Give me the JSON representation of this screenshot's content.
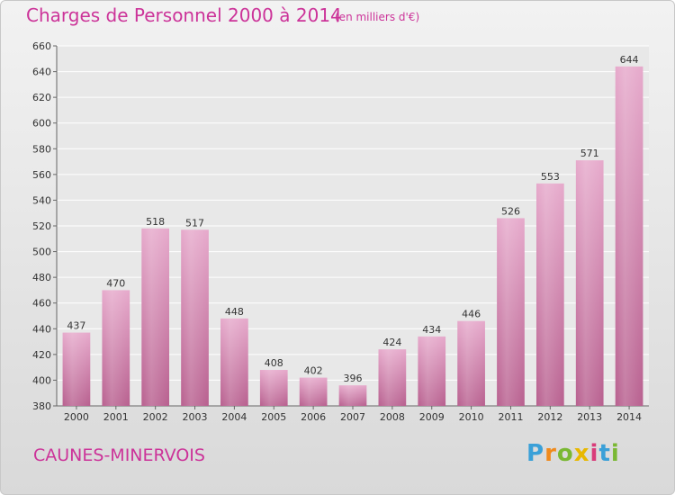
{
  "header": {
    "title": "Charges de Personnel 2000 à 2014",
    "subtitle": "(en milliers d'€)"
  },
  "footer": {
    "commune": "CAUNES-MINERVOIS",
    "logo_text": "Proxiti"
  },
  "colors": {
    "bar": "#d986b3",
    "title": "#cc3399"
  },
  "chart_data": {
    "type": "bar",
    "categories": [
      "2000",
      "2001",
      "2002",
      "2003",
      "2004",
      "2005",
      "2006",
      "2007",
      "2008",
      "2009",
      "2010",
      "2011",
      "2012",
      "2013",
      "2014"
    ],
    "values": [
      437,
      470,
      518,
      517,
      448,
      408,
      402,
      396,
      424,
      434,
      446,
      526,
      553,
      571,
      644
    ],
    "title": "Charges de Personnel 2000 à 2014",
    "subtitle": "(en milliers d'€)",
    "xlabel": "",
    "ylabel": "",
    "ylim": [
      380,
      660
    ],
    "yticks": [
      380,
      400,
      420,
      440,
      460,
      480,
      500,
      520,
      540,
      560,
      580,
      600,
      620,
      640,
      660
    ],
    "grid": true,
    "legend": "none"
  }
}
